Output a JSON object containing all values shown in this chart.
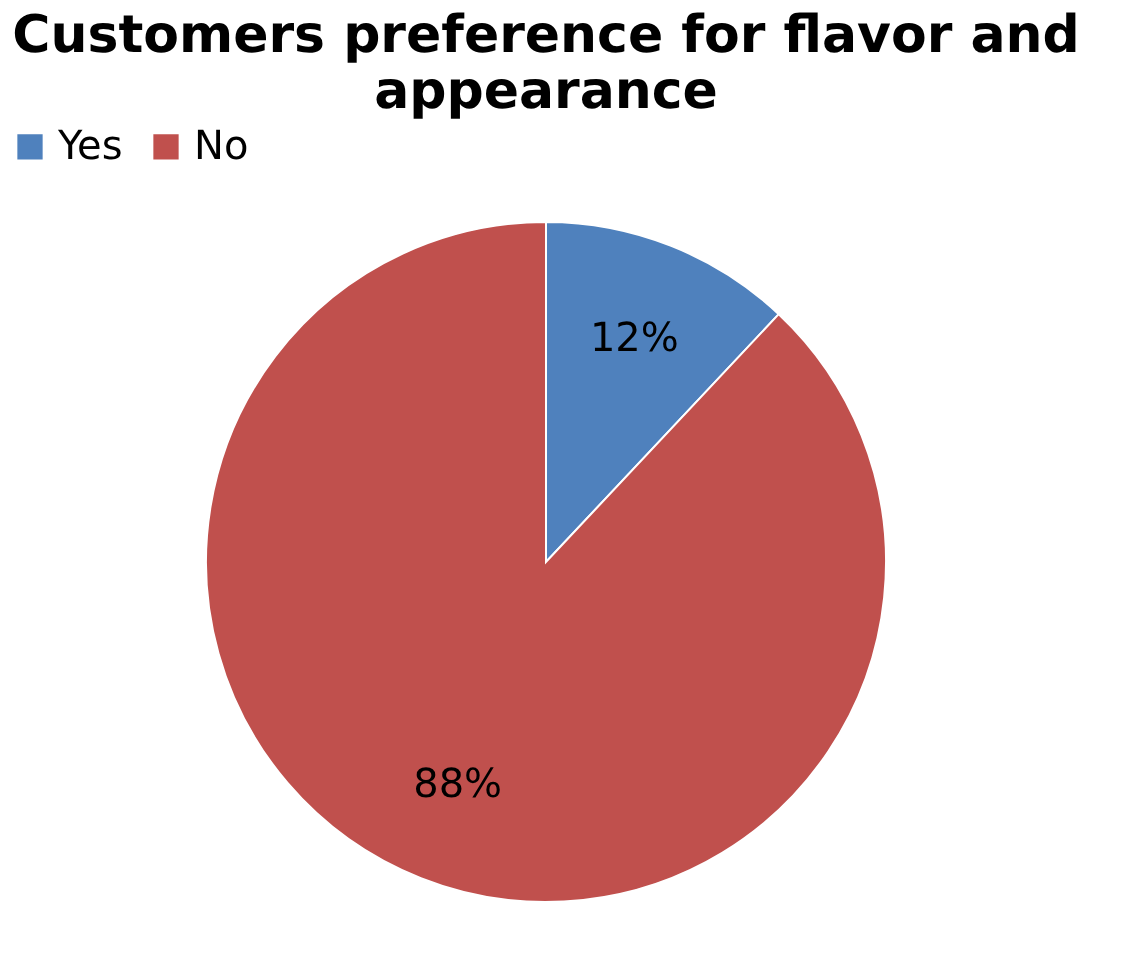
{
  "chart_data": {
    "type": "pie",
    "title": "Customers preference for flavor and appearance",
    "categories": [
      "Yes",
      "No"
    ],
    "values": [
      12,
      88
    ],
    "colors": [
      "#4f81bd",
      "#c0504d"
    ],
    "value_labels": [
      "12%",
      "88%"
    ],
    "legend": "top"
  }
}
